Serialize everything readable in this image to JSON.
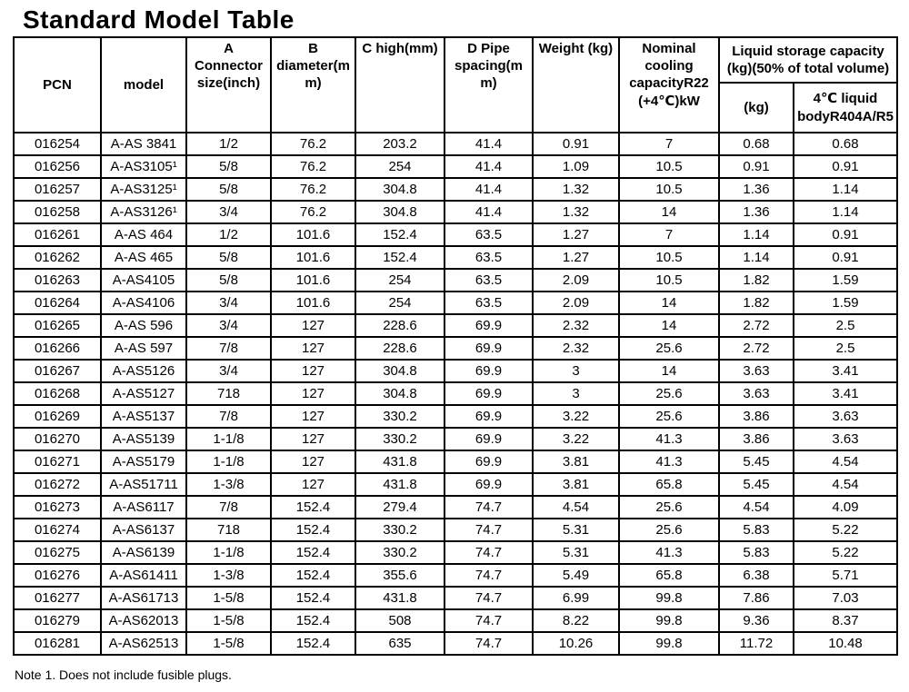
{
  "title": "Standard Model Table",
  "note": "Note 1. Does not include fusible plugs.",
  "table": {
    "headers": {
      "pcn": "PCN",
      "model": "model",
      "connector": "A\nConnector\nsize(inch)",
      "diameter": "B\ndiameter(m\nm)",
      "high": "C high(mm)",
      "pipe_spacing": "D Pipe\nspacing(m\nm)",
      "weight": "Weight (kg)",
      "cooling": "Nominal\ncooling\ncapacityR22\n(+4℃)kW",
      "liquid_group": "Liquid storage capacity\n(kg)(50% of total volume)",
      "liquid_kg": "(kg)",
      "liquid_4c": "4℃ liquid\nbodyR404A/R5"
    },
    "rows": [
      [
        "016254",
        "A-AS 3841",
        "1/2",
        "76.2",
        "203.2",
        "41.4",
        "0.91",
        "7",
        "0.68",
        "0.68"
      ],
      [
        "016256",
        "A-AS3105¹",
        "5/8",
        "76.2",
        "254",
        "41.4",
        "1.09",
        "10.5",
        "0.91",
        "0.91"
      ],
      [
        "016257",
        "A-AS3125¹",
        "5/8",
        "76.2",
        "304.8",
        "41.4",
        "1.32",
        "10.5",
        "1.36",
        "1.14"
      ],
      [
        "016258",
        "A-AS3126¹",
        "3/4",
        "76.2",
        "304.8",
        "41.4",
        "1.32",
        "14",
        "1.36",
        "1.14"
      ],
      [
        "016261",
        "A-AS 464",
        "1/2",
        "101.6",
        "152.4",
        "63.5",
        "1.27",
        "7",
        "1.14",
        "0.91"
      ],
      [
        "016262",
        "A-AS 465",
        "5/8",
        "101.6",
        "152.4",
        "63.5",
        "1.27",
        "10.5",
        "1.14",
        "0.91"
      ],
      [
        "016263",
        "A-AS4105",
        "5/8",
        "101.6",
        "254",
        "63.5",
        "2.09",
        "10.5",
        "1.82",
        "1.59"
      ],
      [
        "016264",
        "A-AS4106",
        "3/4",
        "101.6",
        "254",
        "63.5",
        "2.09",
        "14",
        "1.82",
        "1.59"
      ],
      [
        "016265",
        "A-AS 596",
        "3/4",
        "127",
        "228.6",
        "69.9",
        "2.32",
        "14",
        "2.72",
        "2.5"
      ],
      [
        "016266",
        "A-AS 597",
        "7/8",
        "127",
        "228.6",
        "69.9",
        "2.32",
        "25.6",
        "2.72",
        "2.5"
      ],
      [
        "016267",
        "A-AS5126",
        "3/4",
        "127",
        "304.8",
        "69.9",
        "3",
        "14",
        "3.63",
        "3.41"
      ],
      [
        "016268",
        "A-AS5127",
        "718",
        "127",
        "304.8",
        "69.9",
        "3",
        "25.6",
        "3.63",
        "3.41"
      ],
      [
        "016269",
        "A-AS5137",
        "7/8",
        "127",
        "330.2",
        "69.9",
        "3.22",
        "25.6",
        "3.86",
        "3.63"
      ],
      [
        "016270",
        "A-AS5139",
        "1-1/8",
        "127",
        "330.2",
        "69.9",
        "3.22",
        "41.3",
        "3.86",
        "3.63"
      ],
      [
        "016271",
        "A-AS5179",
        "1-1/8",
        "127",
        "431.8",
        "69.9",
        "3.81",
        "41.3",
        "5.45",
        "4.54"
      ],
      [
        "016272",
        "A-AS51711",
        "1-3/8",
        "127",
        "431.8",
        "69.9",
        "3.81",
        "65.8",
        "5.45",
        "4.54"
      ],
      [
        "016273",
        "A-AS6117",
        "7/8",
        "152.4",
        "279.4",
        "74.7",
        "4.54",
        "25.6",
        "4.54",
        "4.09"
      ],
      [
        "016274",
        "A-AS6137",
        "718",
        "152.4",
        "330.2",
        "74.7",
        "5.31",
        "25.6",
        "5.83",
        "5.22"
      ],
      [
        "016275",
        "A-AS6139",
        "1-1/8",
        "152.4",
        "330.2",
        "74.7",
        "5.31",
        "41.3",
        "5.83",
        "5.22"
      ],
      [
        "016276",
        "A-AS61411",
        "1-3/8",
        "152.4",
        "355.6",
        "74.7",
        "5.49",
        "65.8",
        "6.38",
        "5.71"
      ],
      [
        "016277",
        "A-AS61713",
        "1-5/8",
        "152.4",
        "431.8",
        "74.7",
        "6.99",
        "99.8",
        "7.86",
        "7.03"
      ],
      [
        "016279",
        "A-AS62013",
        "1-5/8",
        "152.4",
        "508",
        "74.7",
        "8.22",
        "99.8",
        "9.36",
        "8.37"
      ],
      [
        "016281",
        "A-AS62513",
        "1-5/8",
        "152.4",
        "635",
        "74.7",
        "10.26",
        "99.8",
        "11.72",
        "10.48"
      ]
    ]
  }
}
